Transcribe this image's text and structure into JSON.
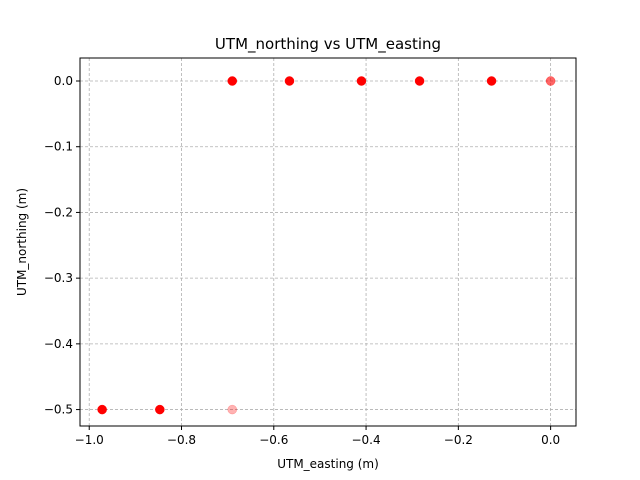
{
  "chart_data": {
    "type": "scatter",
    "title": "UTM_northing vs UTM_easting",
    "xlabel": "UTM_easting (m)",
    "ylabel": "UTM_northing (m)",
    "xlim": [
      -1.02,
      0.055
    ],
    "ylim": [
      -0.525,
      0.035
    ],
    "grid": true,
    "xticks": [
      -1.0,
      -0.8,
      -0.6,
      -0.4,
      -0.2,
      0.0
    ],
    "yticks": [
      0.0,
      -0.1,
      -0.2,
      -0.3,
      -0.4,
      -0.5
    ],
    "xtick_labels": [
      "−1.0",
      "−0.8",
      "−0.6",
      "−0.4",
      "−0.2",
      "0.0"
    ],
    "ytick_labels": [
      "0.0",
      "−0.1",
      "−0.2",
      "−0.3",
      "−0.4",
      "−0.5"
    ],
    "series": [
      {
        "color": "#ff0000",
        "points": [
          {
            "x": -0.972,
            "y": -0.5,
            "alpha": 1.0
          },
          {
            "x": -0.847,
            "y": -0.5,
            "alpha": 1.0
          },
          {
            "x": -0.69,
            "y": -0.5,
            "alpha": 0.3
          },
          {
            "x": -0.69,
            "y": 0.0,
            "alpha": 1.0
          },
          {
            "x": -0.566,
            "y": 0.0,
            "alpha": 1.0
          },
          {
            "x": -0.41,
            "y": 0.0,
            "alpha": 1.0
          },
          {
            "x": -0.284,
            "y": 0.0,
            "alpha": 1.0
          },
          {
            "x": -0.128,
            "y": 0.0,
            "alpha": 1.0
          },
          {
            "x": 0.0,
            "y": 0.0,
            "alpha": 0.6
          }
        ]
      }
    ]
  }
}
